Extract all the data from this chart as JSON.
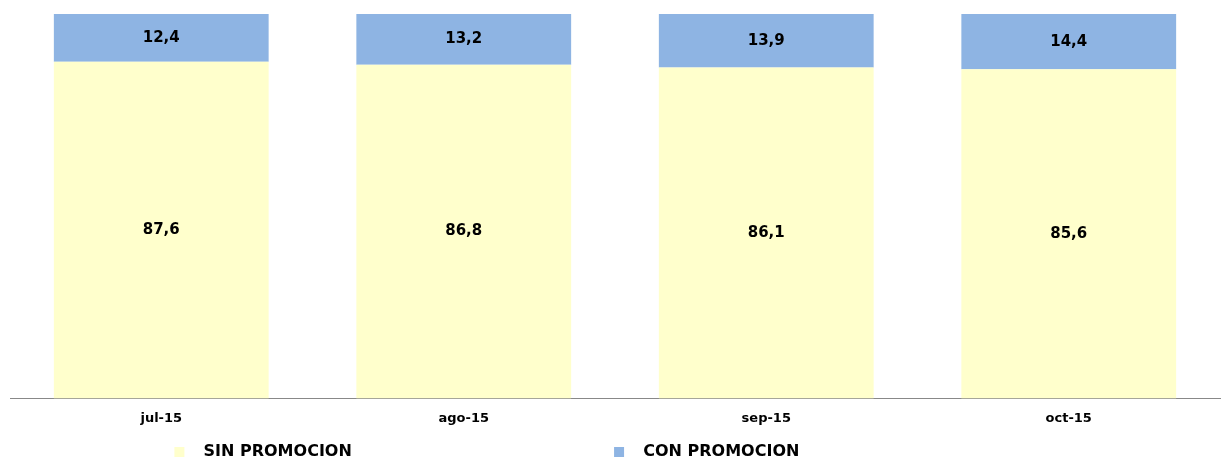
{
  "chart_data": {
    "type": "bar",
    "stacked": true,
    "categories": [
      "jul-15",
      "ago-15",
      "sep-15",
      "oct-15"
    ],
    "series": [
      {
        "name": "SIN PROMOCION",
        "color": "#ffffcc",
        "values": [
          87.6,
          86.8,
          86.1,
          85.6
        ],
        "value_labels": [
          "87,6",
          "86,8",
          "86,1",
          "85,6"
        ]
      },
      {
        "name": "CON PROMOCION",
        "color": "#8eb4e3",
        "values": [
          12.4,
          13.2,
          13.9,
          14.4
        ],
        "value_labels": [
          "12,4",
          "13,2",
          "13,9",
          "14,4"
        ]
      }
    ],
    "ylim": [
      0,
      100
    ],
    "tick_labels": "x",
    "grid": false,
    "legend": "bottom"
  }
}
